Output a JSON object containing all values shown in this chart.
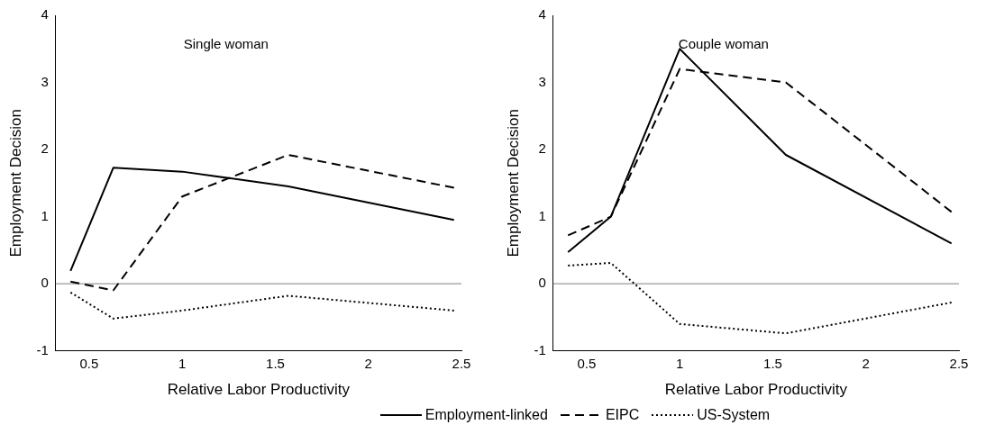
{
  "chart_data": [
    {
      "type": "line",
      "title": "Single woman",
      "xlabel": "Relative Labor Productivity",
      "ylabel": "Employment Decision",
      "x": [
        0.4,
        0.63,
        1,
        1.57,
        2.46
      ],
      "xlim": [
        0.32,
        2.5
      ],
      "xticks": [
        0.5,
        1,
        1.5,
        2,
        2.5
      ],
      "ylim": [
        -1,
        4
      ],
      "yticks": [
        -1,
        0,
        1,
        2,
        3,
        4
      ],
      "grid": false,
      "legend": "bottom",
      "marker": "none",
      "ref_lines": [
        {
          "axis": "y",
          "value": 0,
          "color": "#808080"
        }
      ],
      "series": [
        {
          "name": "Employment-linked",
          "color": "#000000",
          "line_style": "solid",
          "values": [
            0.19,
            1.73,
            1.67,
            1.45,
            0.95
          ]
        },
        {
          "name": "EIPC",
          "color": "#000000",
          "line_style": "dashed",
          "values": [
            0.03,
            -0.1,
            1.3,
            1.92,
            1.43
          ]
        },
        {
          "name": "US-System",
          "color": "#000000",
          "line_style": "dotted",
          "values": [
            -0.13,
            -0.52,
            -0.4,
            -0.18,
            -0.4
          ]
        }
      ]
    },
    {
      "type": "line",
      "title": "Couple woman",
      "xlabel": "Relative Labor Productivity",
      "ylabel": "Employment Decision",
      "x": [
        0.4,
        0.63,
        1,
        1.57,
        2.46
      ],
      "xlim": [
        0.32,
        2.5
      ],
      "xticks": [
        0.5,
        1,
        1.5,
        2,
        2.5
      ],
      "ylim": [
        -1,
        4
      ],
      "yticks": [
        -1,
        0,
        1,
        2,
        3,
        4
      ],
      "grid": false,
      "legend": "bottom",
      "marker": "none",
      "ref_lines": [
        {
          "axis": "y",
          "value": 0,
          "color": "#808080"
        }
      ],
      "series": [
        {
          "name": "Employment-linked",
          "color": "#000000",
          "line_style": "solid",
          "values": [
            0.47,
            1.0,
            3.5,
            1.92,
            0.6
          ]
        },
        {
          "name": "EIPC",
          "color": "#000000",
          "line_style": "dashed",
          "values": [
            0.72,
            1.0,
            3.2,
            3.0,
            1.07
          ]
        },
        {
          "name": "US-System",
          "color": "#000000",
          "line_style": "dotted",
          "values": [
            0.27,
            0.31,
            -0.6,
            -0.74,
            -0.28
          ]
        }
      ]
    }
  ]
}
